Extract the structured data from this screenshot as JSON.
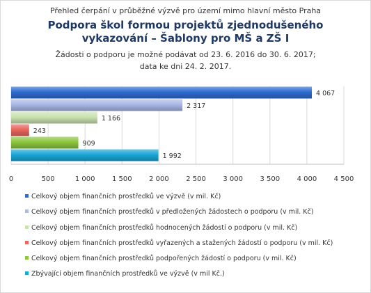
{
  "titles": {
    "small": "Přehled čerpání v průběžné výzvě pro území mimo hlavní město Praha",
    "main_line1": "Podpora škol formou projektů zjednodušeného",
    "main_line2": "vykazování – Šablony pro MŠ a ZŠ I",
    "sub_line1": "Žádosti o podporu je možné podávat od 23. 6. 2016 do 30. 6. 2017;",
    "sub_line2": "data ke dni 24. 2. 2017."
  },
  "chart_data": {
    "type": "bar",
    "orientation": "horizontal",
    "xlim": [
      0,
      4500
    ],
    "x_ticks": [
      0,
      500,
      1000,
      1500,
      2000,
      2500,
      3000,
      3500,
      4000,
      4500
    ],
    "x_tick_labels": [
      "0",
      "500",
      "1 000",
      "1 500",
      "2 000",
      "2 500",
      "3 000",
      "3 500",
      "4 000",
      "4 500"
    ],
    "grid": "vertical",
    "legend_position": "bottom",
    "series": [
      {
        "name": "Celkový objem finančních prostředků ve výzvě (v mil. Kč)",
        "value": 4067,
        "label": "4 067",
        "color": "#2f6bd0"
      },
      {
        "name": "Celkový objem finančních prostředků v předložených žádostech o podporu (v mil. Kč)",
        "value": 2317,
        "label": "2 317",
        "color": "#a9b8e6"
      },
      {
        "name": "Celkový objem finančních prostředků hodnocených žádostí o podporu (v mil. Kč)",
        "value": 1166,
        "label": "1 166",
        "color": "#c9e3b0"
      },
      {
        "name": "Celkový objem finančních prostředků vyřazených a stažených žádostí o podporu (v mil. Kč)",
        "value": 243,
        "label": "243",
        "color": "#e8675f"
      },
      {
        "name": "Celkový objem finančních prostředků podpořených žádostí o podporu (v mil. Kč)",
        "value": 909,
        "label": "909",
        "color": "#8cc63e"
      },
      {
        "name": "Zbývající objem finančních prostředků ve výzvě (v mil Kč.)",
        "value": 1992,
        "label": "1 992",
        "color": "#1aa6d6"
      }
    ]
  }
}
